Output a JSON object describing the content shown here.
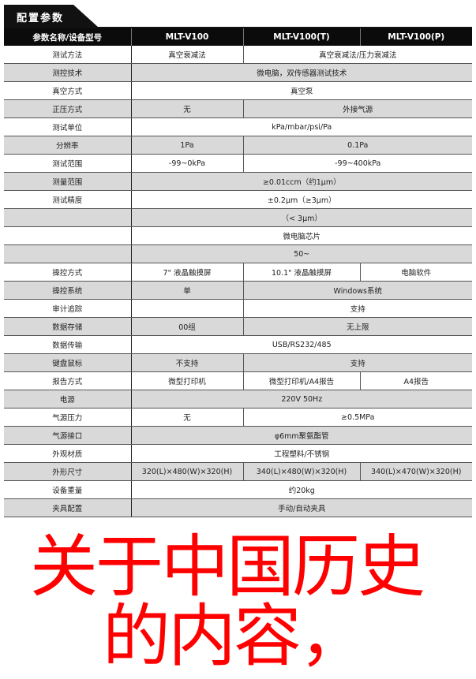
{
  "section_title": "配置参数",
  "headers": [
    "参数名称/设备型号",
    "MLT-V100",
    "MLT-V100(T)",
    "MLT-V100(P)"
  ],
  "rows": [
    {
      "label": "测试方法",
      "cells": [
        {
          "text": "真空衰减法",
          "span": 1
        },
        {
          "text": "真空衰减法/压力衰减法",
          "span": 2
        }
      ]
    },
    {
      "label": "测控技术",
      "cells": [
        {
          "text": "微电脑，双传感器测试技术",
          "span": 3
        }
      ]
    },
    {
      "label": "真空方式",
      "cells": [
        {
          "text": "真空泵",
          "span": 3
        }
      ]
    },
    {
      "label": "正压方式",
      "cells": [
        {
          "text": "无",
          "span": 1
        },
        {
          "text": "外接气源",
          "span": 2
        }
      ]
    },
    {
      "label": "测试单位",
      "cells": [
        {
          "text": "kPa/mbar/psi/Pa",
          "span": 3
        }
      ]
    },
    {
      "label": "分辨率",
      "cells": [
        {
          "text": "1Pa",
          "span": 1
        },
        {
          "text": "0.1Pa",
          "span": 2
        }
      ]
    },
    {
      "label": "测试范围",
      "cells": [
        {
          "text": "-99~0kPa",
          "span": 1
        },
        {
          "text": "-99~400kPa",
          "span": 2
        }
      ]
    },
    {
      "label": "测量范围",
      "cells": [
        {
          "text": "≥0.01ccm（约1μm）",
          "span": 3
        }
      ]
    },
    {
      "label": "测试精度",
      "cells": [
        {
          "text": "±0.2μm（≥3μm）",
          "span": 3
        }
      ]
    },
    {
      "label": "",
      "cells": [
        {
          "text": "（< 3μm）",
          "span": 3
        }
      ]
    },
    {
      "label": "",
      "cells": [
        {
          "text": "微电脑芯片",
          "span": 3
        }
      ]
    },
    {
      "label": "",
      "cells": [
        {
          "text": "50~",
          "span": 3
        }
      ]
    },
    {
      "label": "操控方式",
      "cells": [
        {
          "text": "7\" 液晶触摸屏",
          "span": 1
        },
        {
          "text": "10.1\" 液晶触摸屏",
          "span": 1
        },
        {
          "text": "电脑软件",
          "span": 1
        }
      ]
    },
    {
      "label": "操控系统",
      "cells": [
        {
          "text": "单",
          "span": 1
        },
        {
          "text": "Windows系统",
          "span": 2
        }
      ]
    },
    {
      "label": "审计追踪",
      "cells": [
        {
          "text": "",
          "span": 1
        },
        {
          "text": "支持",
          "span": 2
        }
      ]
    },
    {
      "label": "数据存储",
      "cells": [
        {
          "text": "00组",
          "span": 1
        },
        {
          "text": "无上限",
          "span": 2
        }
      ]
    },
    {
      "label": "数据传输",
      "cells": [
        {
          "text": "USB/RS232/485",
          "span": 3
        }
      ]
    },
    {
      "label": "键盘鼠标",
      "cells": [
        {
          "text": "不支持",
          "span": 1
        },
        {
          "text": "支持",
          "span": 2
        }
      ]
    },
    {
      "label": "报告方式",
      "cells": [
        {
          "text": "微型打印机",
          "span": 1
        },
        {
          "text": "微型打印机/A4报告",
          "span": 1
        },
        {
          "text": "A4报告",
          "span": 1
        }
      ]
    },
    {
      "label": "电源",
      "cells": [
        {
          "text": "220V 50Hz",
          "span": 3
        }
      ]
    },
    {
      "label": "气源压力",
      "cells": [
        {
          "text": "无",
          "span": 1
        },
        {
          "text": "≥0.5MPa",
          "span": 2
        }
      ]
    },
    {
      "label": "气源接口",
      "cells": [
        {
          "text": "φ6mm聚氨酯管",
          "span": 3
        }
      ]
    },
    {
      "label": "外观材质",
      "cells": [
        {
          "text": "工程塑料/不锈钢",
          "span": 3
        }
      ]
    },
    {
      "label": "外形尺寸",
      "cells": [
        {
          "text": "320(L)×480(W)×320(H)",
          "span": 1
        },
        {
          "text": "340(L)×480(W)×320(H)",
          "span": 1
        },
        {
          "text": "340(L)×470(W)×320(H)",
          "span": 1
        }
      ]
    },
    {
      "label": "设备重量",
      "cells": [
        {
          "text": "约20kg",
          "span": 3
        }
      ]
    },
    {
      "label": "夹具配置",
      "cells": [
        {
          "text": "手动/自动夹具",
          "span": 3
        }
      ]
    }
  ],
  "overlay": {
    "line1": "关于中国历史",
    "line2": "的内容，",
    "color": "#ff0000"
  }
}
